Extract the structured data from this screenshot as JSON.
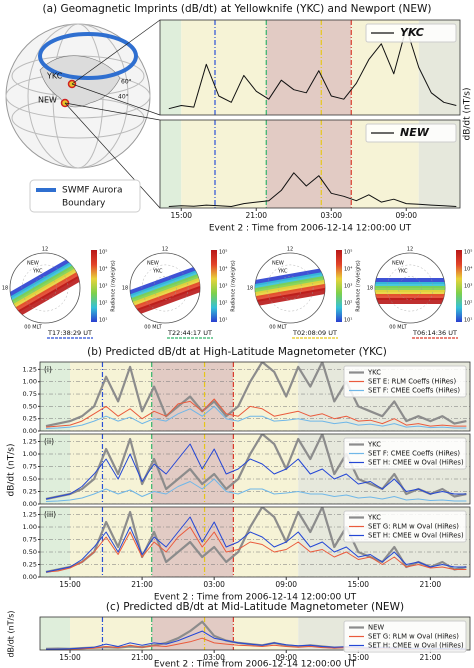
{
  "figure": {
    "panel_a": {
      "title": "(a) Geomagnetic Imprints (dB/dt) at Yellowknife (YKC) and Newport (NEW)",
      "xlabel": "Event 2 : Time from 2006-12-14 12:00:00 UT",
      "ylabel": "dB/dt (nT/s)",
      "globe": {
        "ykc": "YKC",
        "new": "NEW",
        "lat60": "60°",
        "lat40": "40°",
        "legend": [
          "SWMF Aurora",
          "Boundary"
        ]
      }
    },
    "aurora": {
      "colorbar_label": "Radiance (rayleighs)",
      "colorbar_ticks": [
        "10⁵",
        "10⁴",
        "10³",
        "10²",
        "10¹"
      ],
      "mlt_top": "12",
      "mlt_left": "18",
      "mlt_bottom": "00 MLT",
      "stations": [
        "NEW",
        "YKC"
      ],
      "frames": [
        "T17:38:29 UT",
        "T22:44:17 UT",
        "T02:08:09 UT",
        "T06:14:36 UT"
      ]
    },
    "panel_b": {
      "title": "(b) Predicted dB/dt at High-Latitude Magnetometer (YKC)",
      "ylabel": "dB/dt (nT/s)",
      "xlabel": "Event 2 : Time from 2006-12-14 12:00:00 UT"
    },
    "panel_c": {
      "title": "(c) Predicted dB/dt at Mid-Latitude Magnetometer (NEW)",
      "ylabel": "dB/dt (nT/s)",
      "xlabel": "Event 2 : Time from 2006-12-14 12:00:00 UT"
    }
  },
  "timeline": {
    "regions": [
      {
        "start": 0.5,
        "end": 3,
        "color": "#dfeedb"
      },
      {
        "start": 3,
        "end": 9.8,
        "color": "#f6f3d6"
      },
      {
        "start": 9.8,
        "end": 16.6,
        "color": "#e2cbc4"
      },
      {
        "start": 16.6,
        "end": 22,
        "color": "#f6f3d6"
      },
      {
        "start": 22,
        "end": 36.3,
        "color": "#e6e8dc"
      }
    ],
    "vlines": [
      {
        "x": 5.7,
        "color": "#2a4fd6"
      },
      {
        "x": 9.8,
        "color": "#33b36b"
      },
      {
        "x": 14.2,
        "color": "#e6c619"
      },
      {
        "x": 16.6,
        "color": "#d93a2b"
      }
    ]
  },
  "chart_data": [
    {
      "type": "line",
      "x": [
        2,
        3,
        4,
        5,
        6,
        7,
        8,
        9,
        10,
        11,
        12,
        13,
        14,
        15,
        16,
        17,
        18,
        19,
        20,
        21,
        22,
        23,
        24,
        25
      ],
      "xlim": [
        1.3,
        25.3
      ],
      "ylim": [
        0,
        6
      ],
      "legend": "upper right",
      "series": [
        {
          "name": "YKC",
          "color": "#111111",
          "values": [
            0.4,
            0.6,
            0.5,
            3.2,
            1.2,
            0.8,
            2.5,
            1.5,
            1.0,
            2.2,
            1.6,
            1.4,
            2.8,
            1.2,
            1.0,
            2.0,
            3.5,
            4.5,
            2.6,
            5.5,
            3.0,
            1.4,
            0.8,
            0.6
          ]
        }
      ]
    },
    {
      "type": "line",
      "x": [
        2,
        3,
        4,
        5,
        6,
        7,
        8,
        9,
        10,
        11,
        12,
        13,
        14,
        15,
        16,
        17,
        18,
        19,
        20,
        21,
        22,
        23,
        24,
        25
      ],
      "xlim": [
        1.3,
        25.3
      ],
      "ylim": [
        0,
        6
      ],
      "legend": "upper right",
      "xticks": [
        {
          "value": 3,
          "label": "15:00"
        },
        {
          "value": 9,
          "label": "21:00"
        },
        {
          "value": 15,
          "label": "03:00"
        },
        {
          "value": 21,
          "label": "09:00"
        }
      ],
      "series": [
        {
          "name": "NEW",
          "color": "#111111",
          "values": [
            0.1,
            0.15,
            0.12,
            0.2,
            0.15,
            0.1,
            0.3,
            0.4,
            0.5,
            1.2,
            2.4,
            1.5,
            2.2,
            1.0,
            0.8,
            0.5,
            0.9,
            0.4,
            0.6,
            0.3,
            0.25,
            0.2,
            0.15,
            0.1
          ]
        }
      ]
    },
    {
      "type": "line",
      "label": "(i)",
      "x": [
        1,
        2,
        3,
        4,
        5,
        6,
        7,
        8,
        9,
        10,
        11,
        12,
        13,
        14,
        15,
        16,
        17,
        18,
        19,
        20,
        21,
        22,
        23,
        24,
        25,
        26,
        27,
        28,
        29,
        30,
        31,
        32,
        33,
        34,
        35,
        36
      ],
      "xlim": [
        0.5,
        36.3
      ],
      "ylim": [
        0,
        1.4
      ],
      "legend": "upper right",
      "yticks": [
        {
          "value": 0,
          "label": "0.00"
        },
        {
          "value": 0.25,
          "label": "0.25"
        },
        {
          "value": 0.5,
          "label": "0.50"
        },
        {
          "value": 0.75,
          "label": "0.75"
        },
        {
          "value": 1,
          "label": "1.00"
        },
        {
          "value": 1.25,
          "label": "1.25"
        }
      ],
      "series": [
        {
          "name": "YKC",
          "color": "#8c8c8c",
          "values": [
            0.1,
            0.15,
            0.2,
            0.3,
            0.5,
            1.1,
            0.6,
            1.3,
            0.4,
            0.9,
            0.3,
            0.5,
            0.7,
            0.4,
            0.6,
            0.3,
            0.5,
            1.0,
            1.4,
            1.2,
            0.7,
            1.3,
            0.9,
            1.4,
            0.6,
            1.0,
            0.5,
            0.4,
            0.3,
            0.6,
            0.2,
            0.3,
            0.2,
            0.3,
            0.15,
            0.2
          ]
        },
        {
          "name": "SET E: RLM Coeffs (HiRes)",
          "color": "#ea5a3c",
          "values": [
            0.08,
            0.1,
            0.12,
            0.2,
            0.35,
            0.5,
            0.3,
            0.45,
            0.25,
            0.4,
            0.3,
            0.55,
            0.6,
            0.4,
            0.65,
            0.35,
            0.3,
            0.5,
            0.45,
            0.3,
            0.35,
            0.4,
            0.3,
            0.35,
            0.25,
            0.3,
            0.2,
            0.22,
            0.15,
            0.25,
            0.12,
            0.15,
            0.1,
            0.12,
            0.1,
            0.1
          ]
        },
        {
          "name": "SET F: CMEE Coeffs (HiRes)",
          "color": "#6fb7e8",
          "values": [
            0.05,
            0.06,
            0.08,
            0.12,
            0.2,
            0.3,
            0.2,
            0.28,
            0.15,
            0.25,
            0.2,
            0.35,
            0.45,
            0.3,
            0.5,
            0.25,
            0.2,
            0.3,
            0.3,
            0.2,
            0.22,
            0.25,
            0.2,
            0.2,
            0.15,
            0.18,
            0.12,
            0.14,
            0.1,
            0.15,
            0.08,
            0.1,
            0.07,
            0.08,
            0.06,
            0.06
          ]
        }
      ]
    },
    {
      "type": "line",
      "label": "(ii)",
      "x": [
        1,
        2,
        3,
        4,
        5,
        6,
        7,
        8,
        9,
        10,
        11,
        12,
        13,
        14,
        15,
        16,
        17,
        18,
        19,
        20,
        21,
        22,
        23,
        24,
        25,
        26,
        27,
        28,
        29,
        30,
        31,
        32,
        33,
        34,
        35,
        36
      ],
      "xlim": [
        0.5,
        36.3
      ],
      "ylim": [
        0,
        1.4
      ],
      "legend": "upper right",
      "yticks": [
        {
          "value": 0,
          "label": "0.00"
        },
        {
          "value": 0.25,
          "label": "0.25"
        },
        {
          "value": 0.5,
          "label": "0.50"
        },
        {
          "value": 0.75,
          "label": "0.75"
        },
        {
          "value": 1,
          "label": "1.00"
        },
        {
          "value": 1.25,
          "label": "1.25"
        }
      ],
      "series": [
        {
          "name": "YKC",
          "color": "#8c8c8c",
          "values": [
            0.1,
            0.15,
            0.2,
            0.3,
            0.5,
            1.1,
            0.6,
            1.3,
            0.4,
            0.9,
            0.3,
            0.5,
            0.7,
            0.4,
            0.6,
            0.3,
            0.5,
            1.0,
            1.4,
            1.2,
            0.7,
            1.3,
            0.9,
            1.4,
            0.6,
            1.0,
            0.5,
            0.4,
            0.3,
            0.6,
            0.2,
            0.3,
            0.2,
            0.3,
            0.15,
            0.2
          ]
        },
        {
          "name": "SET F: CMEE Coeffs (HiRes)",
          "color": "#6fb7e8",
          "values": [
            0.05,
            0.06,
            0.08,
            0.12,
            0.2,
            0.3,
            0.2,
            0.28,
            0.15,
            0.25,
            0.2,
            0.35,
            0.45,
            0.3,
            0.5,
            0.25,
            0.2,
            0.3,
            0.3,
            0.2,
            0.22,
            0.25,
            0.2,
            0.2,
            0.15,
            0.18,
            0.12,
            0.14,
            0.1,
            0.15,
            0.08,
            0.1,
            0.07,
            0.08,
            0.06,
            0.06
          ]
        },
        {
          "name": "SET H: CMEE w Oval (HiRes)",
          "color": "#2447d6",
          "values": [
            0.1,
            0.15,
            0.2,
            0.35,
            0.6,
            0.9,
            0.5,
            1.0,
            0.45,
            0.8,
            0.6,
            0.9,
            1.2,
            0.7,
            1.1,
            0.6,
            0.7,
            0.9,
            0.8,
            0.6,
            0.7,
            0.9,
            0.6,
            0.7,
            0.5,
            0.6,
            0.4,
            0.45,
            0.3,
            0.5,
            0.25,
            0.3,
            0.2,
            0.25,
            0.2,
            0.2
          ]
        }
      ]
    },
    {
      "type": "line",
      "label": "(iii)",
      "x": [
        1,
        2,
        3,
        4,
        5,
        6,
        7,
        8,
        9,
        10,
        11,
        12,
        13,
        14,
        15,
        16,
        17,
        18,
        19,
        20,
        21,
        22,
        23,
        24,
        25,
        26,
        27,
        28,
        29,
        30,
        31,
        32,
        33,
        34,
        35,
        36
      ],
      "xlim": [
        0.5,
        36.3
      ],
      "ylim": [
        0,
        1.4
      ],
      "legend": "upper right",
      "yticks": [
        {
          "value": 0,
          "label": "0.00"
        },
        {
          "value": 0.25,
          "label": "0.25"
        },
        {
          "value": 0.5,
          "label": "0.50"
        },
        {
          "value": 0.75,
          "label": "0.75"
        },
        {
          "value": 1,
          "label": "1.00"
        },
        {
          "value": 1.25,
          "label": "1.25"
        }
      ],
      "xticks": [
        {
          "value": 3,
          "label": "15:00"
        },
        {
          "value": 9,
          "label": "21:00"
        },
        {
          "value": 15,
          "label": "03:00"
        },
        {
          "value": 21,
          "label": "09:00"
        },
        {
          "value": 27,
          "label": "15:00"
        },
        {
          "value": 33,
          "label": "21:00"
        }
      ],
      "series": [
        {
          "name": "YKC",
          "color": "#8c8c8c",
          "values": [
            0.1,
            0.15,
            0.2,
            0.3,
            0.5,
            1.1,
            0.6,
            1.3,
            0.4,
            0.9,
            0.3,
            0.5,
            0.7,
            0.4,
            0.6,
            0.3,
            0.5,
            1.0,
            1.4,
            1.2,
            0.7,
            1.3,
            0.9,
            1.4,
            0.6,
            1.0,
            0.5,
            0.4,
            0.3,
            0.6,
            0.2,
            0.3,
            0.2,
            0.3,
            0.15,
            0.2
          ]
        },
        {
          "name": "SET G: RLM w Oval (HiRes)",
          "color": "#ea5a3c",
          "values": [
            0.1,
            0.12,
            0.18,
            0.3,
            0.5,
            0.8,
            0.45,
            0.9,
            0.4,
            0.7,
            0.5,
            0.8,
            1.0,
            0.6,
            0.9,
            0.5,
            0.55,
            0.7,
            0.65,
            0.5,
            0.55,
            0.7,
            0.5,
            0.55,
            0.4,
            0.5,
            0.35,
            0.4,
            0.25,
            0.4,
            0.2,
            0.25,
            0.18,
            0.2,
            0.15,
            0.15
          ]
        },
        {
          "name": "SET H: CMEE w Oval (HiRes)",
          "color": "#2447d6",
          "values": [
            0.1,
            0.15,
            0.2,
            0.35,
            0.6,
            0.9,
            0.5,
            1.0,
            0.45,
            0.8,
            0.6,
            0.9,
            1.2,
            0.7,
            1.1,
            0.6,
            0.7,
            0.9,
            0.8,
            0.6,
            0.7,
            0.9,
            0.6,
            0.7,
            0.5,
            0.6,
            0.4,
            0.45,
            0.3,
            0.5,
            0.25,
            0.3,
            0.2,
            0.25,
            0.2,
            0.2
          ]
        }
      ]
    },
    {
      "type": "line",
      "x": [
        1,
        2,
        3,
        4,
        5,
        6,
        7,
        8,
        9,
        10,
        11,
        12,
        13,
        14,
        15,
        16,
        17,
        18,
        19,
        20,
        21,
        22,
        23,
        24,
        25,
        26,
        27,
        28,
        29,
        30,
        31,
        32,
        33,
        34,
        35,
        36
      ],
      "xlim": [
        0.5,
        36.3
      ],
      "ylim": [
        0,
        1.4
      ],
      "legend": "upper right",
      "xticks": [
        {
          "value": 3,
          "label": "15:00"
        },
        {
          "value": 9,
          "label": "21:00"
        },
        {
          "value": 15,
          "label": "03:00"
        },
        {
          "value": 21,
          "label": "09:00"
        },
        {
          "value": 27,
          "label": "15:00"
        },
        {
          "value": 33,
          "label": "21:00"
        }
      ],
      "series": [
        {
          "name": "NEW",
          "color": "#8c8c8c",
          "values": [
            0.05,
            0.06,
            0.05,
            0.08,
            0.1,
            0.12,
            0.1,
            0.15,
            0.12,
            0.2,
            0.3,
            0.5,
            0.8,
            1.2,
            0.6,
            0.4,
            0.3,
            0.25,
            0.2,
            0.3,
            0.2,
            0.15,
            0.2,
            0.15,
            0.1,
            0.12,
            0.1,
            0.08,
            0.1,
            0.08,
            0.06,
            0.07,
            0.05,
            0.06,
            0.05,
            0.05
          ]
        },
        {
          "name": "SET G: RLM w Oval (HiRes)",
          "color": "#ea5a3c",
          "values": [
            0.02,
            0.03,
            0.03,
            0.05,
            0.08,
            0.15,
            0.1,
            0.2,
            0.12,
            0.18,
            0.15,
            0.25,
            0.35,
            0.5,
            0.3,
            0.25,
            0.2,
            0.18,
            0.15,
            0.2,
            0.15,
            0.12,
            0.15,
            0.1,
            0.08,
            0.1,
            0.07,
            0.06,
            0.07,
            0.05,
            0.04,
            0.05,
            0.04,
            0.04,
            0.03,
            0.03
          ]
        },
        {
          "name": "SET H: CMEE w Oval (HiRes)",
          "color": "#2447d6",
          "values": [
            0.03,
            0.04,
            0.05,
            0.08,
            0.12,
            0.25,
            0.15,
            0.3,
            0.2,
            0.3,
            0.25,
            0.4,
            0.6,
            0.8,
            0.5,
            0.4,
            0.3,
            0.25,
            0.2,
            0.3,
            0.22,
            0.18,
            0.2,
            0.15,
            0.12,
            0.14,
            0.1,
            0.08,
            0.1,
            0.08,
            0.06,
            0.07,
            0.05,
            0.06,
            0.05,
            0.04
          ]
        }
      ]
    }
  ]
}
